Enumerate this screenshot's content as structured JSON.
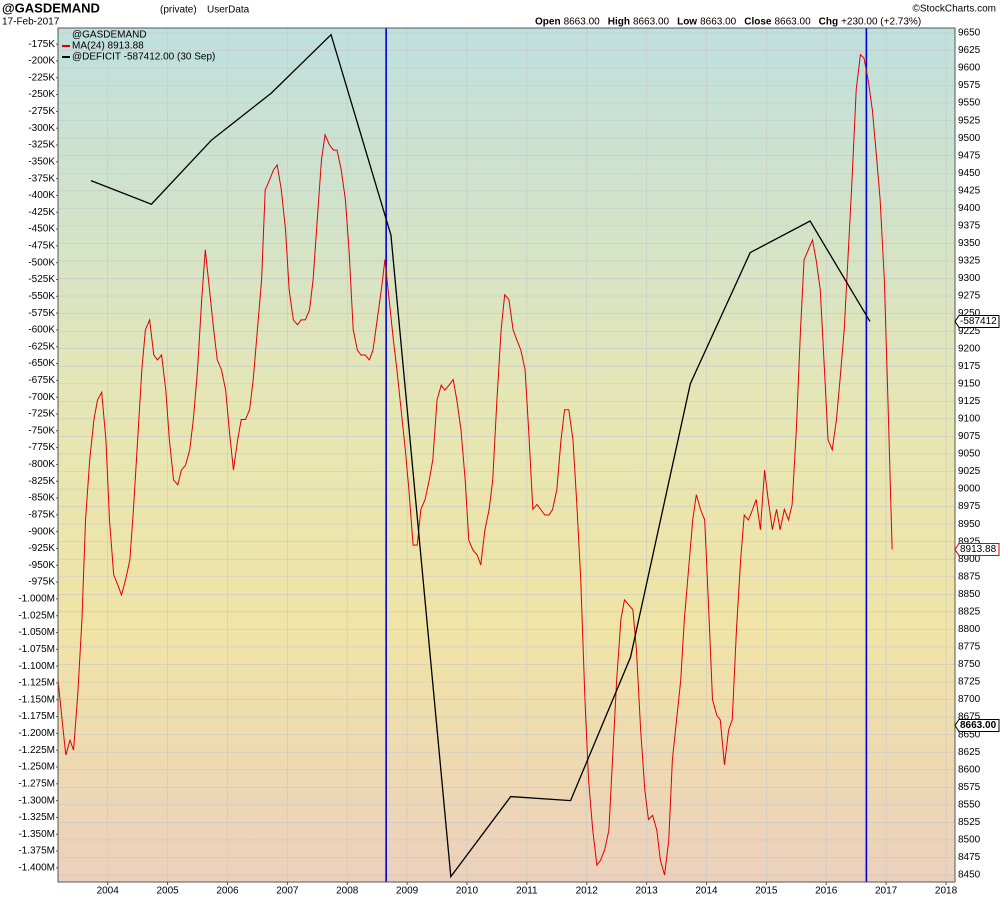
{
  "chart_data": {
    "type": "line",
    "title": "@GASDEMAND",
    "subtitle": "(private)",
    "source": "UserData",
    "date": "17-Feb-2017",
    "credit": "©StockCharts.com",
    "quote": [
      "Open",
      "8663.00",
      "High",
      "8663.00",
      "Low",
      "8663.00",
      "Close",
      "8663.00",
      "Chg",
      "+230.00 (+2.73%)"
    ],
    "legend_header": "@GASDEMAND",
    "xlim": [
      2003.17,
      2018.15
    ],
    "xticks": [
      2004,
      2005,
      2006,
      2007,
      2008,
      2009,
      2010,
      2011,
      2012,
      2013,
      2014,
      2015,
      2016,
      2017,
      2018
    ],
    "ylim": [
      -1421000,
      -151000
    ],
    "yticks": [
      {
        "value": -175000,
        "label": "-175K"
      },
      {
        "value": -200000,
        "label": "-200K"
      },
      {
        "value": -225000,
        "label": "-225K"
      },
      {
        "value": -250000,
        "label": "-250K"
      },
      {
        "value": -275000,
        "label": "-275K"
      },
      {
        "value": -300000,
        "label": "-300K"
      },
      {
        "value": -325000,
        "label": "-325K"
      },
      {
        "value": -350000,
        "label": "-350K"
      },
      {
        "value": -375000,
        "label": "-375K"
      },
      {
        "value": -400000,
        "label": "-400K"
      },
      {
        "value": -425000,
        "label": "-425K"
      },
      {
        "value": -450000,
        "label": "-450K"
      },
      {
        "value": -475000,
        "label": "-475K"
      },
      {
        "value": -500000,
        "label": "-500K"
      },
      {
        "value": -525000,
        "label": "-525K"
      },
      {
        "value": -550000,
        "label": "-550K"
      },
      {
        "value": -575000,
        "label": "-575K"
      },
      {
        "value": -600000,
        "label": "-600K"
      },
      {
        "value": -625000,
        "label": "-625K"
      },
      {
        "value": -650000,
        "label": "-650K"
      },
      {
        "value": -675000,
        "label": "-675K"
      },
      {
        "value": -700000,
        "label": "-700K"
      },
      {
        "value": -725000,
        "label": "-725K"
      },
      {
        "value": -750000,
        "label": "-750K"
      },
      {
        "value": -775000,
        "label": "-775K"
      },
      {
        "value": -800000,
        "label": "-800K"
      },
      {
        "value": -825000,
        "label": "-825K"
      },
      {
        "value": -850000,
        "label": "-850K"
      },
      {
        "value": -875000,
        "label": "-875K"
      },
      {
        "value": -900000,
        "label": "-900K"
      },
      {
        "value": -925000,
        "label": "-925K"
      },
      {
        "value": -950000,
        "label": "-950K"
      },
      {
        "value": -975000,
        "label": "-975K"
      },
      {
        "value": -1000000,
        "label": "-1.000M"
      },
      {
        "value": -1025000,
        "label": "-1.025M"
      },
      {
        "value": -1050000,
        "label": "-1.050M"
      },
      {
        "value": -1075000,
        "label": "-1.075M"
      },
      {
        "value": -1100000,
        "label": "-1.100M"
      },
      {
        "value": -1125000,
        "label": "-1.125M"
      },
      {
        "value": -1150000,
        "label": "-1.150M"
      },
      {
        "value": -1175000,
        "label": "-1.175M"
      },
      {
        "value": -1200000,
        "label": "-1.200M"
      },
      {
        "value": -1225000,
        "label": "-1.225M"
      },
      {
        "value": -1250000,
        "label": "-1.250M"
      },
      {
        "value": -1275000,
        "label": "-1.275M"
      },
      {
        "value": -1300000,
        "label": "-1.300M"
      },
      {
        "value": -1325000,
        "label": "-1.325M"
      },
      {
        "value": -1350000,
        "label": "-1.350M"
      },
      {
        "value": -1375000,
        "label": "-1.375M"
      },
      {
        "value": -1400000,
        "label": "-1.400M"
      }
    ],
    "y2lim": [
      8440,
      9657
    ],
    "y2ticks": [
      9650,
      9625,
      9600,
      9575,
      9550,
      9525,
      9500,
      9475,
      9450,
      9425,
      9400,
      9375,
      9350,
      9325,
      9300,
      9275,
      9250,
      9225,
      9200,
      9175,
      9150,
      9125,
      9100,
      9075,
      9050,
      9025,
      9000,
      8975,
      8950,
      8925,
      8900,
      8875,
      8850,
      8825,
      8800,
      8775,
      8750,
      8725,
      8700,
      8675,
      8650,
      8625,
      8600,
      8575,
      8550,
      8525,
      8500,
      8475,
      8450
    ],
    "grid": true,
    "series": [
      {
        "name": "MA(24) 8913.88",
        "color": "#e00000",
        "axis": "y2",
        "x": [
          2003.17,
          2003.23,
          2003.3,
          2003.37,
          2003.43,
          2003.5,
          2003.57,
          2003.63,
          2003.7,
          2003.77,
          2003.83,
          2003.9,
          2003.97,
          2004.03,
          2004.1,
          2004.17,
          2004.23,
          2004.3,
          2004.37,
          2004.43,
          2004.5,
          2004.57,
          2004.63,
          2004.7,
          2004.77,
          2004.83,
          2004.9,
          2004.97,
          2005.03,
          2005.1,
          2005.17,
          2005.23,
          2005.3,
          2005.37,
          2005.43,
          2005.5,
          2005.57,
          2005.63,
          2005.7,
          2005.77,
          2005.83,
          2005.9,
          2005.97,
          2006.03,
          2006.1,
          2006.17,
          2006.23,
          2006.3,
          2006.37,
          2006.43,
          2006.5,
          2006.57,
          2006.63,
          2006.7,
          2006.77,
          2006.83,
          2006.9,
          2006.97,
          2007.03,
          2007.1,
          2007.17,
          2007.23,
          2007.3,
          2007.37,
          2007.43,
          2007.5,
          2007.57,
          2007.63,
          2007.7,
          2007.77,
          2007.83,
          2007.9,
          2007.97,
          2008.03,
          2008.1,
          2008.17,
          2008.23,
          2008.3,
          2008.37,
          2008.43,
          2008.5,
          2008.57,
          2008.63,
          2008.7,
          2008.77,
          2008.83,
          2008.9,
          2008.97,
          2009.03,
          2009.1,
          2009.17,
          2009.23,
          2009.3,
          2009.37,
          2009.43,
          2009.5,
          2009.57,
          2009.63,
          2009.7,
          2009.77,
          2009.83,
          2009.9,
          2009.97,
          2010.03,
          2010.1,
          2010.17,
          2010.23,
          2010.3,
          2010.37,
          2010.43,
          2010.5,
          2010.57,
          2010.63,
          2010.7,
          2010.77,
          2010.83,
          2010.9,
          2010.97,
          2011.03,
          2011.1,
          2011.17,
          2011.23,
          2011.3,
          2011.37,
          2011.43,
          2011.5,
          2011.57,
          2011.63,
          2011.7,
          2011.77,
          2011.83,
          2011.9,
          2011.97,
          2012.03,
          2012.1,
          2012.17,
          2012.23,
          2012.3,
          2012.37,
          2012.43,
          2012.5,
          2012.57,
          2012.63,
          2012.7,
          2012.77,
          2012.83,
          2012.9,
          2012.97,
          2013.03,
          2013.1,
          2013.17,
          2013.23,
          2013.3,
          2013.37,
          2013.43,
          2013.5,
          2013.57,
          2013.63,
          2013.7,
          2013.77,
          2013.83,
          2013.9,
          2013.97,
          2014.03,
          2014.1,
          2014.17,
          2014.23,
          2014.3,
          2014.37,
          2014.43,
          2014.5,
          2014.57,
          2014.63,
          2014.7,
          2014.77,
          2014.83,
          2014.9,
          2014.97,
          2015.03,
          2015.1,
          2015.17,
          2015.23,
          2015.3,
          2015.37,
          2015.43,
          2015.5,
          2015.57,
          2015.63,
          2015.7,
          2015.77,
          2015.83,
          2015.9,
          2015.97,
          2016.03,
          2016.1,
          2016.17,
          2016.23,
          2016.3,
          2016.37,
          2016.43,
          2016.5,
          2016.57,
          2016.63,
          2016.7,
          2016.77,
          2016.83,
          2016.9,
          2016.97,
          2017.03,
          2017.1
        ],
        "values": [
          8728,
          8678,
          8621,
          8642,
          8628,
          8707,
          8814,
          8956,
          9042,
          9099,
          9127,
          9138,
          9070,
          8956,
          8878,
          8863,
          8849,
          8871,
          8899,
          8971,
          9070,
          9170,
          9227,
          9241,
          9191,
          9184,
          9191,
          9141,
          9070,
          9013,
          9006,
          9027,
          9034,
          9056,
          9099,
          9170,
          9270,
          9341,
          9284,
          9227,
          9184,
          9170,
          9141,
          9084,
          9027,
          9070,
          9099,
          9099,
          9113,
          9156,
          9227,
          9298,
          9426,
          9440,
          9455,
          9462,
          9426,
          9369,
          9284,
          9241,
          9234,
          9241,
          9241,
          9255,
          9298,
          9384,
          9469,
          9505,
          9491,
          9483,
          9483,
          9455,
          9412,
          9341,
          9227,
          9198,
          9191,
          9191,
          9184,
          9198,
          9241,
          9284,
          9327,
          9270,
          9213,
          9170,
          9113,
          9056,
          8999,
          8920,
          8920,
          8971,
          8985,
          9013,
          9042,
          9127,
          9148,
          9141,
          9148,
          9156,
          9127,
          9084,
          9013,
          8927,
          8913,
          8906,
          8892,
          8942,
          8971,
          9013,
          9127,
          9227,
          9277,
          9270,
          9227,
          9213,
          9198,
          9170,
          9084,
          8971,
          8978,
          8971,
          8963,
          8963,
          8971,
          8999,
          9070,
          9113,
          9113,
          9070,
          8985,
          8871,
          8700,
          8586,
          8514,
          8464,
          8471,
          8486,
          8514,
          8614,
          8728,
          8814,
          8842,
          8835,
          8828,
          8771,
          8657,
          8571,
          8529,
          8535,
          8514,
          8471,
          8450,
          8500,
          8614,
          8671,
          8728,
          8814,
          8885,
          8956,
          8992,
          8971,
          8956,
          8842,
          8700,
          8678,
          8671,
          8607,
          8657,
          8671,
          8799,
          8899,
          8963,
          8956,
          8971,
          8985,
          8942,
          9027,
          8985,
          8942,
          8971,
          8942,
          8971,
          8956,
          8978,
          9084,
          9227,
          9327,
          9341,
          9355,
          9327,
          9284,
          9170,
          9070,
          9056,
          9099,
          9156,
          9227,
          9341,
          9440,
          9569,
          9619,
          9614,
          9583,
          9540,
          9483,
          9412,
          9298,
          9127,
          8913.88
        ]
      },
      {
        "name": "@DEFICIT -587412.00 (30 Sep)",
        "color": "#000000",
        "axis": "y",
        "x": [
          2003.72,
          2004.73,
          2005.73,
          2006.73,
          2007.73,
          2008.73,
          2009.73,
          2010.73,
          2011.73,
          2012.73,
          2013.73,
          2014.73,
          2015.73,
          2016.73
        ],
        "values": [
          -378000,
          -413000,
          -318000,
          -248000,
          -161000,
          -459000,
          -1413000,
          -1294000,
          -1300000,
          -1087000,
          -680000,
          -485000,
          -438000,
          -587412
        ]
      }
    ],
    "vlines": [
      2008.65,
      2016.67
    ],
    "vline_color": "#0000dd",
    "end_labels": [
      {
        "value": -587412,
        "label": "-587412",
        "axis": "y",
        "color": "#000000"
      },
      {
        "value": 8913.88,
        "label": "8913.88",
        "axis": "y2",
        "color": "#e00000"
      },
      {
        "value": 8663,
        "label": "8663.00",
        "axis": "y2",
        "color": "#000000"
      }
    ]
  }
}
